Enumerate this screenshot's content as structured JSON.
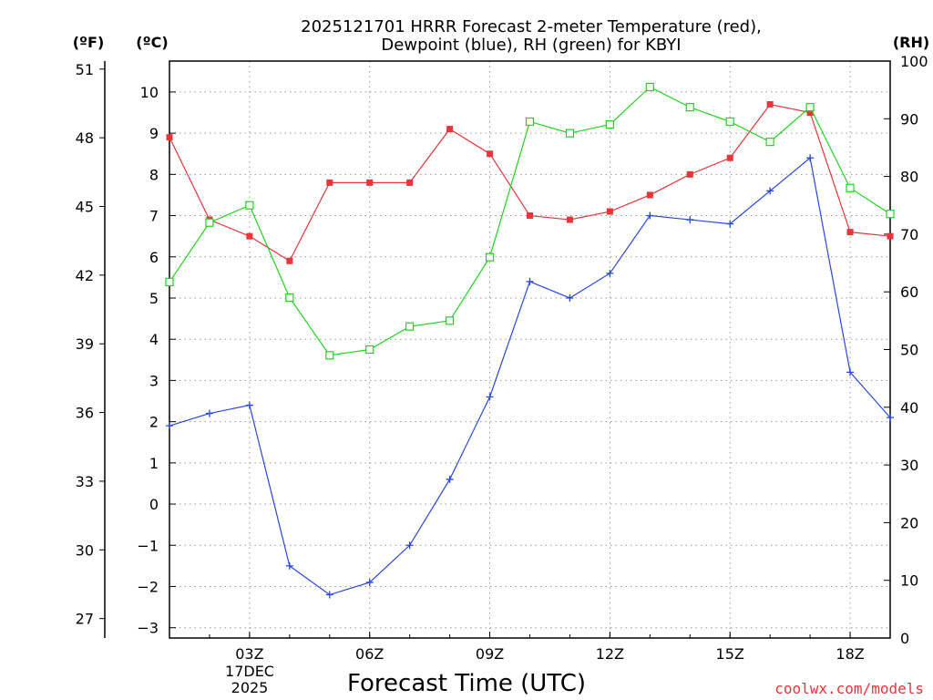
{
  "chart_data": {
    "type": "line",
    "title_line1": "2025121701 HRRR Forecast 2-meter Temperature (red),",
    "title_line2": "Dewpoint (blue), RH (green) for KBYI",
    "unit_f": "(ºF)",
    "unit_c": "(ºC)",
    "unit_rh": "(RH)",
    "xlabel": "Forecast Time (UTC)",
    "credit": "coolwx.com/models",
    "x_range": [
      1,
      19
    ],
    "x_ticks": [
      {
        "x": 3,
        "label": "03Z"
      },
      {
        "x": 6,
        "label": "06Z"
      },
      {
        "x": 9,
        "label": "09Z"
      },
      {
        "x": 12,
        "label": "12Z"
      },
      {
        "x": 15,
        "label": "15Z"
      },
      {
        "x": 18,
        "label": "18Z"
      }
    ],
    "date_label_line1": "17DEC",
    "date_label_line2": "2025",
    "c_axis": {
      "range": [
        -3.25,
        10.75
      ],
      "ticks": [
        -3,
        -2,
        -1,
        0,
        1,
        2,
        3,
        4,
        5,
        6,
        7,
        8,
        9,
        10
      ],
      "tick_labels": [
        "−3",
        "−2",
        "−1",
        "0",
        "1",
        "2",
        "3",
        "4",
        "5",
        "6",
        "7",
        "8",
        "9",
        "10"
      ]
    },
    "f_axis": {
      "ticks": [
        27,
        30,
        33,
        36,
        39,
        42,
        45,
        48,
        51
      ],
      "tick_labels": [
        "27",
        "30",
        "33",
        "36",
        "39",
        "42",
        "45",
        "48",
        "51"
      ]
    },
    "rh_axis": {
      "range": [
        0,
        100
      ],
      "ticks": [
        0,
        10,
        20,
        30,
        40,
        50,
        60,
        70,
        80,
        90,
        100
      ],
      "tick_labels": [
        "0",
        "10",
        "20",
        "30",
        "40",
        "50",
        "60",
        "70",
        "80",
        "90",
        "100"
      ]
    },
    "x": [
      1,
      2,
      3,
      4,
      5,
      6,
      7,
      8,
      9,
      10,
      11,
      12,
      13,
      14,
      15,
      16,
      17,
      18,
      19
    ],
    "series": [
      {
        "name": "Temperature",
        "axis": "c",
        "color": "#e8353a",
        "marker": "filled-square",
        "values": [
          8.9,
          6.9,
          6.5,
          5.9,
          7.8,
          7.8,
          7.8,
          9.1,
          8.5,
          7.0,
          6.9,
          7.1,
          7.5,
          8.0,
          8.4,
          9.7,
          9.5,
          6.6,
          6.5
        ]
      },
      {
        "name": "Dewpoint",
        "axis": "c",
        "color": "#2846e6",
        "marker": "plus",
        "values": [
          1.9,
          2.2,
          2.4,
          -1.5,
          -2.2,
          -1.9,
          -1.0,
          0.6,
          2.6,
          5.4,
          5.0,
          5.6,
          7.0,
          6.9,
          6.8,
          7.6,
          8.4,
          3.2,
          2.1
        ]
      },
      {
        "name": "RH",
        "axis": "rh",
        "color": "#22d222",
        "marker": "open-square",
        "values": [
          61.7,
          72.0,
          75.0,
          59.0,
          49.0,
          50.0,
          54.0,
          55.0,
          66.0,
          89.5,
          87.5,
          89.0,
          95.5,
          92.0,
          89.5,
          86.0,
          92.0,
          78.0,
          73.5
        ]
      }
    ]
  }
}
